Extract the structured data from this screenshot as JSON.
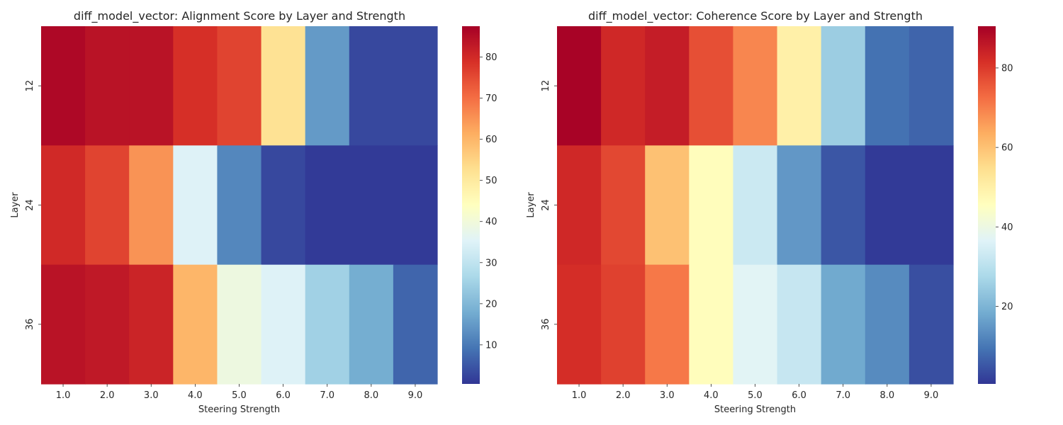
{
  "chart_data": [
    {
      "type": "heatmap",
      "title": "diff_model_vector: Alignment Score by Layer and Strength",
      "xlabel": "Steering Strength",
      "ylabel": "Layer",
      "x": [
        "1.0",
        "2.0",
        "3.0",
        "4.0",
        "5.0",
        "6.0",
        "7.0",
        "8.0",
        "9.0"
      ],
      "y": [
        "12",
        "24",
        "36"
      ],
      "values": [
        [
          86,
          84,
          84,
          79,
          76,
          52,
          15,
          3,
          3
        ],
        [
          80,
          76,
          65,
          35,
          12,
          3,
          1,
          1,
          1
        ],
        [
          84,
          83,
          81,
          60,
          39,
          35,
          25,
          18,
          7
        ]
      ],
      "colorbar": {
        "vmin": 0.5,
        "vmax": 87.5,
        "ticks": [
          10,
          20,
          30,
          40,
          50,
          60,
          70,
          80
        ]
      },
      "colormap": "RdYlBu_r"
    },
    {
      "type": "heatmap",
      "title": "diff_model_vector: Coherence Score by Layer and Strength",
      "xlabel": "Steering Strength",
      "ylabel": "Layer",
      "x": [
        "1.0",
        "2.0",
        "3.0",
        "4.0",
        "5.0",
        "6.0",
        "7.0",
        "8.0",
        "9.0"
      ],
      "y": [
        "12",
        "24",
        "36"
      ],
      "values": [
        [
          90,
          83,
          85,
          77,
          69,
          50,
          25,
          9,
          7
        ],
        [
          83,
          78,
          60,
          46,
          33,
          15,
          5,
          1,
          1
        ],
        [
          82,
          79,
          71,
          46,
          37,
          32,
          18,
          13,
          4
        ]
      ],
      "colorbar": {
        "vmin": 0.5,
        "vmax": 90.5,
        "ticks": [
          20,
          40,
          60,
          80
        ]
      },
      "colormap": "RdYlBu_r"
    }
  ]
}
